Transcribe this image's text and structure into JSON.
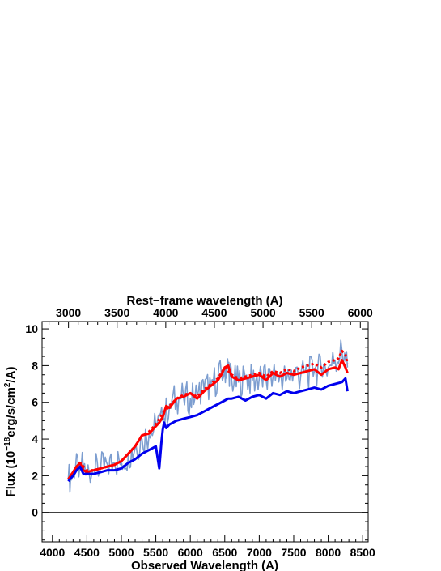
{
  "chart_data": {
    "type": "line",
    "title": "",
    "top_axis": {
      "label": "Rest−frame wavelength (A)",
      "ticks": [
        3000,
        3500,
        4000,
        4500,
        5000,
        5500,
        6000
      ],
      "tick_labels": [
        "3000",
        "3500",
        "4000",
        "4500",
        "5000",
        "5500",
        "6000"
      ],
      "observed_per_rest": 1.411
    },
    "xlabel": "Observed Wavelength (A)",
    "ylabel_parts": [
      "Flux (10",
      "−18",
      "erg/s/cm",
      "2",
      "/A)"
    ],
    "xlim": [
      3850,
      8580
    ],
    "ylim": [
      -1.6,
      10.4
    ],
    "xticks": [
      4000,
      4500,
      5000,
      5500,
      6000,
      6500,
      7000,
      7500,
      8000,
      8500
    ],
    "xtick_labels": [
      "4000",
      "4500",
      "5000",
      "5500",
      "6000",
      "6500",
      "7000",
      "7500",
      "8000",
      "8500"
    ],
    "yticks": [
      0,
      2,
      4,
      6,
      8,
      10
    ],
    "ytick_labels": [
      "0",
      "2",
      "4",
      "6",
      "8",
      "10"
    ],
    "zero_line": 0,
    "grid": false,
    "legend": "none",
    "series": [
      {
        "color": "#7d9ed0",
        "style": "noisy-band",
        "x": [
          4230,
          4300,
          4400,
          4500,
          4600,
          4700,
          4800,
          4900,
          5000,
          5100,
          5200,
          5300,
          5400,
          5500,
          5600,
          5700,
          5800,
          5900,
          6000,
          6100,
          6200,
          6300,
          6400,
          6500,
          6550,
          6600,
          6700,
          6800,
          6900,
          7000,
          7100,
          7200,
          7300,
          7400,
          7500,
          7600,
          7700,
          7800,
          7900,
          8000,
          8100,
          8200,
          8280
        ],
        "y": [
          1.8,
          2.1,
          2.6,
          2.3,
          2.3,
          2.4,
          2.6,
          2.7,
          2.8,
          3.1,
          3.5,
          4.0,
          4.2,
          4.7,
          5.0,
          5.9,
          6.2,
          6.3,
          6.2,
          6.4,
          6.7,
          7.0,
          7.3,
          7.8,
          8.0,
          7.2,
          7.1,
          7.3,
          7.2,
          7.3,
          7.2,
          7.4,
          7.5,
          7.3,
          7.7,
          7.4,
          7.6,
          7.7,
          7.8,
          7.9,
          8.3,
          8.8,
          7.9
        ]
      },
      {
        "color": "#ff0000",
        "style": "solid",
        "x": [
          4230,
          4300,
          4350,
          4400,
          4450,
          4500,
          4600,
          4700,
          4800,
          4900,
          5000,
          5100,
          5200,
          5300,
          5400,
          5500,
          5550,
          5600,
          5650,
          5700,
          5800,
          5900,
          6000,
          6100,
          6200,
          6300,
          6400,
          6450,
          6500,
          6550,
          6600,
          6700,
          6800,
          6900,
          7000,
          7100,
          7200,
          7300,
          7400,
          7500,
          7600,
          7700,
          7800,
          7900,
          8000,
          8100,
          8150,
          8200,
          8250,
          8280
        ],
        "y": [
          1.8,
          2.2,
          2.5,
          2.7,
          2.3,
          2.2,
          2.3,
          2.4,
          2.5,
          2.6,
          2.8,
          3.2,
          3.6,
          4.2,
          4.3,
          4.7,
          4.9,
          5.2,
          5.8,
          5.7,
          6.2,
          6.3,
          6.5,
          6.2,
          6.6,
          6.9,
          7.2,
          7.5,
          7.9,
          8.0,
          7.4,
          7.2,
          7.3,
          7.4,
          7.5,
          7.2,
          7.6,
          7.4,
          7.6,
          7.5,
          7.6,
          7.7,
          7.8,
          7.5,
          7.8,
          7.9,
          7.8,
          8.3,
          7.9,
          7.6
        ]
      },
      {
        "color": "#ff0000",
        "style": "dotted",
        "x": [
          4230,
          4300,
          4400,
          4500,
          4600,
          4700,
          4800,
          4900,
          5000,
          5100,
          5200,
          5300,
          5400,
          5500,
          5600,
          5700,
          5800,
          5900,
          6000,
          6100,
          6200,
          6300,
          6400,
          6500,
          6600,
          6700,
          6800,
          6900,
          7000,
          7100,
          7200,
          7300,
          7400,
          7500,
          7600,
          7700,
          7800,
          7900,
          8000,
          8100,
          8150,
          8200,
          8250,
          8280
        ],
        "y": [
          1.8,
          2.2,
          2.7,
          2.3,
          2.3,
          2.4,
          2.5,
          2.6,
          2.8,
          3.2,
          3.6,
          4.2,
          4.4,
          4.8,
          5.4,
          5.8,
          6.2,
          6.4,
          6.5,
          6.3,
          6.7,
          7.0,
          7.3,
          7.9,
          7.5,
          7.3,
          7.4,
          7.5,
          7.6,
          7.4,
          7.7,
          7.6,
          7.8,
          7.7,
          7.9,
          8.0,
          8.1,
          7.9,
          8.2,
          8.3,
          8.4,
          8.8,
          8.6,
          8.1
        ]
      },
      {
        "color": "#0000ee",
        "style": "solid",
        "x": [
          4230,
          4300,
          4350,
          4400,
          4450,
          4500,
          4600,
          4700,
          4800,
          4900,
          5000,
          5100,
          5200,
          5300,
          5400,
          5500,
          5550,
          5580,
          5600,
          5620,
          5650,
          5700,
          5800,
          5900,
          6000,
          6100,
          6200,
          6300,
          6400,
          6500,
          6550,
          6600,
          6700,
          6800,
          6900,
          7000,
          7100,
          7200,
          7300,
          7400,
          7500,
          7600,
          7700,
          7800,
          7900,
          8000,
          8100,
          8200,
          8250,
          8280
        ],
        "y": [
          1.7,
          2.0,
          2.3,
          2.5,
          2.1,
          2.1,
          2.1,
          2.2,
          2.3,
          2.3,
          2.4,
          2.7,
          2.9,
          3.2,
          3.4,
          3.6,
          2.4,
          3.8,
          4.5,
          4.9,
          4.6,
          4.8,
          5.0,
          5.1,
          5.2,
          5.3,
          5.5,
          5.7,
          5.9,
          6.1,
          6.2,
          6.2,
          6.3,
          6.1,
          6.3,
          6.4,
          6.2,
          6.5,
          6.4,
          6.6,
          6.5,
          6.6,
          6.7,
          6.8,
          6.7,
          6.9,
          7.0,
          7.1,
          7.3,
          6.6
        ]
      }
    ]
  }
}
